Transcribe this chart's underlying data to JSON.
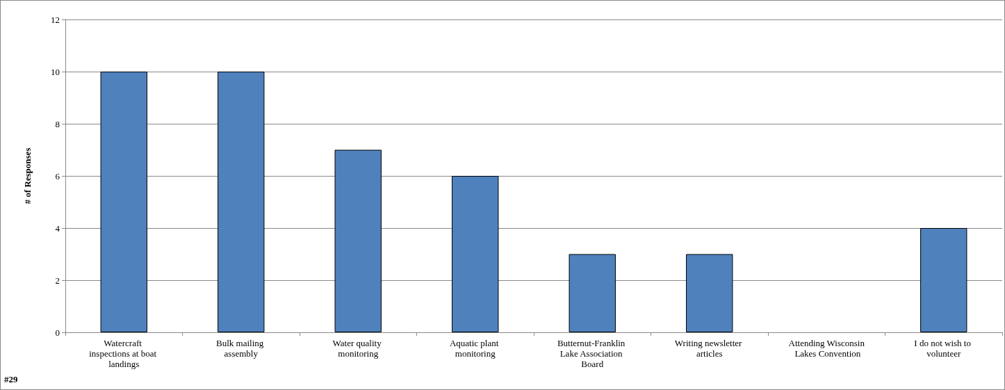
{
  "chart_data": {
    "type": "bar",
    "ylabel": "# of Responses",
    "categories": [
      "Watercraft inspections at boat landings",
      "Bulk mailing assembly",
      "Water quality monitoring",
      "Aquatic plant monitoring",
      "Butternut-Franklin Lake Association Board",
      "Writing newsletter articles",
      "Attending Wisconsin Lakes Convention",
      "I do not wish to volunteer"
    ],
    "values": [
      10,
      10,
      7,
      6,
      3,
      3,
      0,
      4
    ],
    "color": "#4f81bd",
    "ylim": [
      0,
      12
    ],
    "yticks": [
      0,
      2,
      4,
      6,
      8,
      10,
      12
    ],
    "grid": "y",
    "annotations": [
      "#29"
    ]
  }
}
